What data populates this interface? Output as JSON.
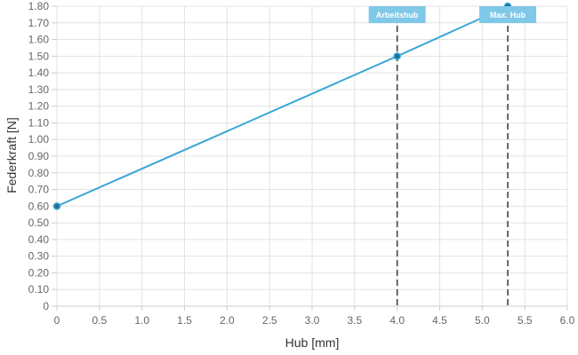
{
  "chart_data": {
    "type": "line",
    "title": "",
    "xlabel": "Hub [mm]",
    "ylabel": "Federkraft [N]",
    "xlim": [
      0,
      6
    ],
    "ylim": [
      0,
      1.8
    ],
    "x_ticks": [
      "0",
      "0.5",
      "1.0",
      "1.5",
      "2.0",
      "2.5",
      "3.0",
      "3.5",
      "4.0",
      "4.5",
      "5.0",
      "5.5",
      "6.0"
    ],
    "y_ticks": [
      "0",
      "0.10",
      "0.20",
      "0.30",
      "0.40",
      "0.50",
      "0.60",
      "0.70",
      "0.80",
      "0.90",
      "1.00",
      "1.10",
      "1.20",
      "1.30",
      "1.40",
      "1.50",
      "1.60",
      "1.70",
      "1.80"
    ],
    "grid": true,
    "series": [
      {
        "points": [
          {
            "x": 0,
            "y": 0.6
          },
          {
            "x": 4.0,
            "y": 1.5
          },
          {
            "x": 5.3,
            "y": 1.8
          }
        ]
      }
    ],
    "annotations": [
      {
        "label": "Arbeitshub",
        "x": 4.0
      },
      {
        "label": "Max. Hub",
        "x": 5.3
      }
    ],
    "colors": {
      "line": "#3aa8d6",
      "marker": "#1f6f96",
      "annotation_bg": "#7fc8e8",
      "annotation_line": "#444444",
      "grid": "#e3e3e3",
      "axis": "#cccccc"
    }
  }
}
